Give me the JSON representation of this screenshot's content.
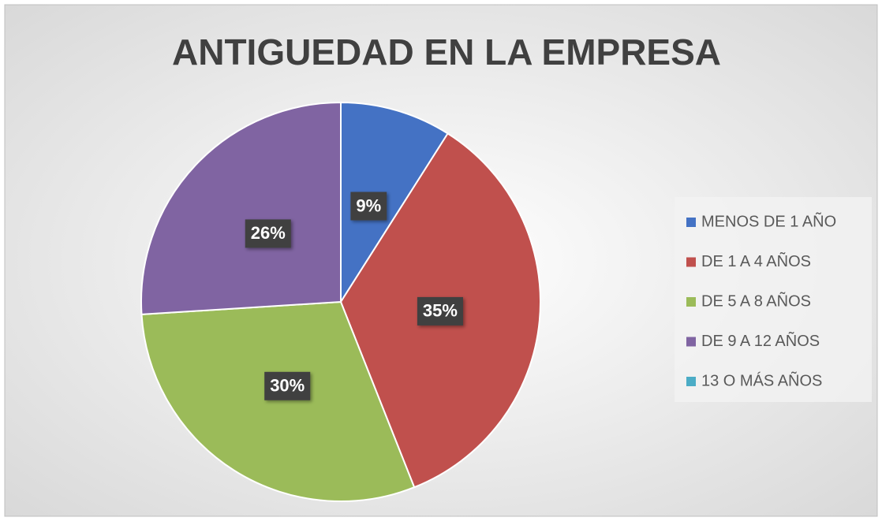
{
  "chart_data": {
    "type": "pie",
    "title": "ANTIGUEDAD EN LA EMPRESA",
    "categories": [
      "MENOS DE 1 AÑO",
      "DE 1 A 4 AÑOS",
      "DE 5 A 8 AÑOS",
      "DE 9 A 12 AÑOS",
      "13 O MÁS AÑOS"
    ],
    "values": [
      9,
      35,
      30,
      26,
      0
    ],
    "value_labels": [
      "9%",
      "35%",
      "30%",
      "26%",
      null
    ],
    "colors": [
      "#4472c4",
      "#c0504d",
      "#9bbb59",
      "#8064a2",
      "#4bacc6"
    ],
    "legend": "right"
  }
}
